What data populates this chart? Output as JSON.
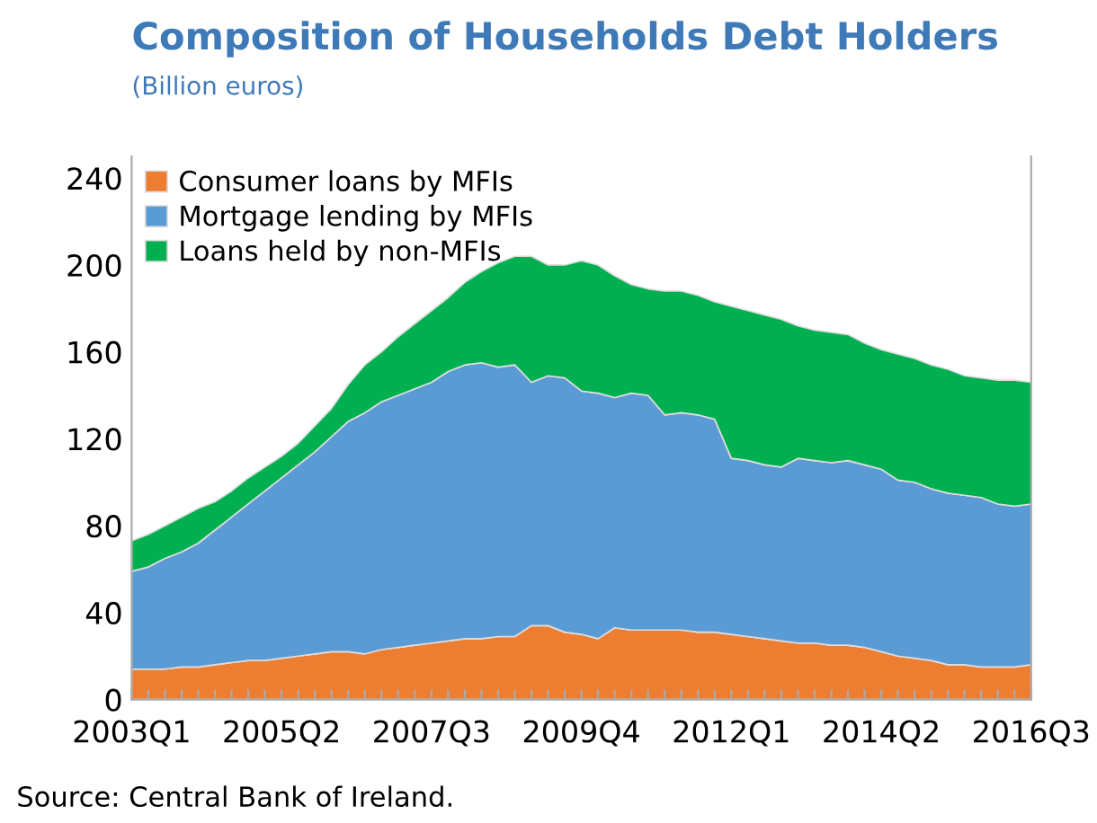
{
  "chart_data": {
    "type": "area",
    "stacked": true,
    "title": "Composition of Households Debt Holders",
    "subtitle": "(Billion euros)",
    "categories": [
      "2003Q1",
      null,
      null,
      null,
      null,
      null,
      null,
      null,
      null,
      "2005Q2",
      null,
      null,
      null,
      null,
      null,
      null,
      null,
      null,
      "2007Q3",
      null,
      null,
      null,
      null,
      null,
      null,
      null,
      null,
      "2009Q4",
      null,
      null,
      null,
      null,
      null,
      null,
      null,
      null,
      "2012Q1",
      null,
      null,
      null,
      null,
      null,
      null,
      null,
      null,
      "2014Q2",
      null,
      null,
      null,
      null,
      null,
      null,
      null,
      null,
      "2016Q3"
    ],
    "series": [
      {
        "name": "Consumer loans by MFIs",
        "color": "#ed7d31",
        "values": [
          14,
          14,
          14,
          15,
          15,
          16,
          17,
          18,
          18,
          19,
          20,
          21,
          22,
          22,
          21,
          23,
          24,
          25,
          26,
          27,
          28,
          28,
          29,
          29,
          34,
          34,
          31,
          30,
          28,
          33,
          32,
          32,
          32,
          32,
          31,
          31,
          30,
          29,
          28,
          27,
          26,
          26,
          25,
          25,
          24,
          22,
          20,
          19,
          18,
          16,
          16,
          15,
          15,
          15,
          16
        ]
      },
      {
        "name": "Mortgage lending by MFIs",
        "color": "#5b9bd5",
        "values": [
          45,
          47,
          51,
          53,
          57,
          62,
          67,
          72,
          78,
          83,
          88,
          93,
          99,
          106,
          111,
          114,
          116,
          118,
          120,
          124,
          126,
          127,
          124,
          125,
          112,
          115,
          117,
          112,
          113,
          106,
          109,
          108,
          99,
          100,
          100,
          98,
          81,
          81,
          80,
          80,
          85,
          84,
          84,
          85,
          84,
          84,
          81,
          81,
          79,
          79,
          78,
          78,
          75,
          74,
          74
        ]
      },
      {
        "name": "Loans held by non-MFIs",
        "color": "#00b050",
        "values": [
          14,
          15,
          15,
          16,
          16,
          13,
          12,
          12,
          11,
          10,
          10,
          12,
          13,
          17,
          22,
          23,
          27,
          30,
          33,
          34,
          38,
          42,
          48,
          50,
          58,
          51,
          52,
          60,
          59,
          56,
          50,
          49,
          57,
          56,
          55,
          54,
          70,
          69,
          69,
          68,
          61,
          60,
          60,
          58,
          56,
          55,
          58,
          57,
          57,
          57,
          55,
          55,
          57,
          58,
          56
        ]
      }
    ],
    "ylim": [
      0,
      250
    ],
    "yticks": [
      0,
      40,
      80,
      120,
      160,
      200,
      240
    ],
    "grid": false,
    "legend": "top left",
    "annotations": [
      "Source: Central Bank of Ireland."
    ]
  }
}
